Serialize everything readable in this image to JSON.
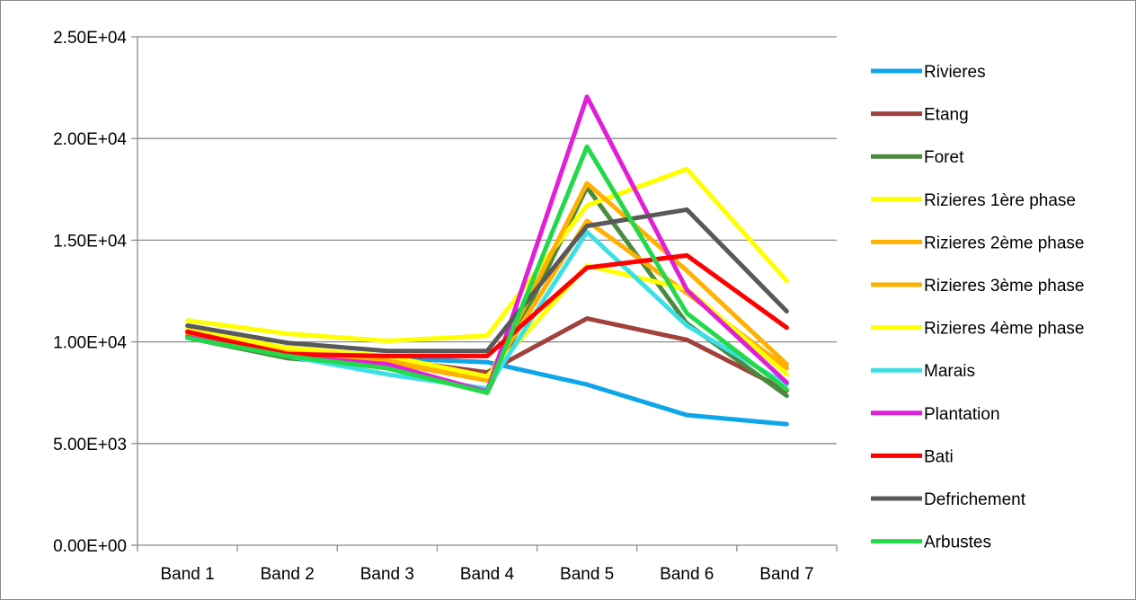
{
  "chart_data": {
    "type": "line",
    "title": "",
    "xlabel": "",
    "ylabel": "",
    "categories": [
      "Band 1",
      "Band 2",
      "Band 3",
      "Band 4",
      "Band 5",
      "Band 6",
      "Band 7"
    ],
    "ylim": [
      0,
      25000
    ],
    "yticks": [
      0,
      5000,
      10000,
      15000,
      20000,
      25000
    ],
    "ytick_labels": [
      "0.00E+00",
      "5.00E+03",
      "1.00E+04",
      "1.50E+04",
      "2.00E+04",
      "2.50E+04"
    ],
    "grid": "horizontal",
    "legend_position": "right",
    "series": [
      {
        "name": "Rivieres",
        "color": "#0ea5e9",
        "values": [
          10300,
          9700,
          9200,
          9000,
          7900,
          6400,
          5950
        ]
      },
      {
        "name": "Etang",
        "color": "#a0413c",
        "values": [
          10500,
          9700,
          9150,
          8500,
          11150,
          10100,
          7600
        ]
      },
      {
        "name": "Foret",
        "color": "#4a8a3c",
        "values": [
          10200,
          9200,
          8800,
          7500,
          17600,
          10900,
          7350
        ]
      },
      {
        "name": "Rizieres 1ère phase",
        "color": "#ffff00",
        "values": [
          11050,
          10400,
          10050,
          10300,
          16700,
          18500,
          13000
        ]
      },
      {
        "name": "Rizieres 2ème phase",
        "color": "#ffb000",
        "values": [
          10400,
          9500,
          9000,
          8100,
          17800,
          13500,
          8900
        ]
      },
      {
        "name": "Rizieres 3ème phase",
        "color": "#ffb000",
        "values": [
          10500,
          9500,
          9100,
          8200,
          15950,
          12400,
          8700
        ]
      },
      {
        "name": "Rizieres 4ème phase",
        "color": "#ffff00",
        "values": [
          10600,
          9700,
          9300,
          8300,
          13750,
          12600,
          8400
        ]
      },
      {
        "name": "Marais",
        "color": "#3ddfe6",
        "values": [
          10200,
          9300,
          8400,
          7700,
          15400,
          10800,
          7900
        ]
      },
      {
        "name": "Plantation",
        "color": "#e21fd8",
        "values": [
          10250,
          9300,
          8900,
          7550,
          22050,
          12550,
          8000
        ]
      },
      {
        "name": "Bati",
        "color": "#ff0000",
        "values": [
          10500,
          9400,
          9300,
          9300,
          13650,
          14250,
          10700
        ]
      },
      {
        "name": "Defrichement",
        "color": "#595959",
        "values": [
          10800,
          9950,
          9550,
          9550,
          15700,
          16500,
          11500
        ]
      },
      {
        "name": "Arbustes",
        "color": "#22d94a",
        "values": [
          10200,
          9300,
          8700,
          7500,
          19600,
          11400,
          7650
        ]
      }
    ]
  }
}
